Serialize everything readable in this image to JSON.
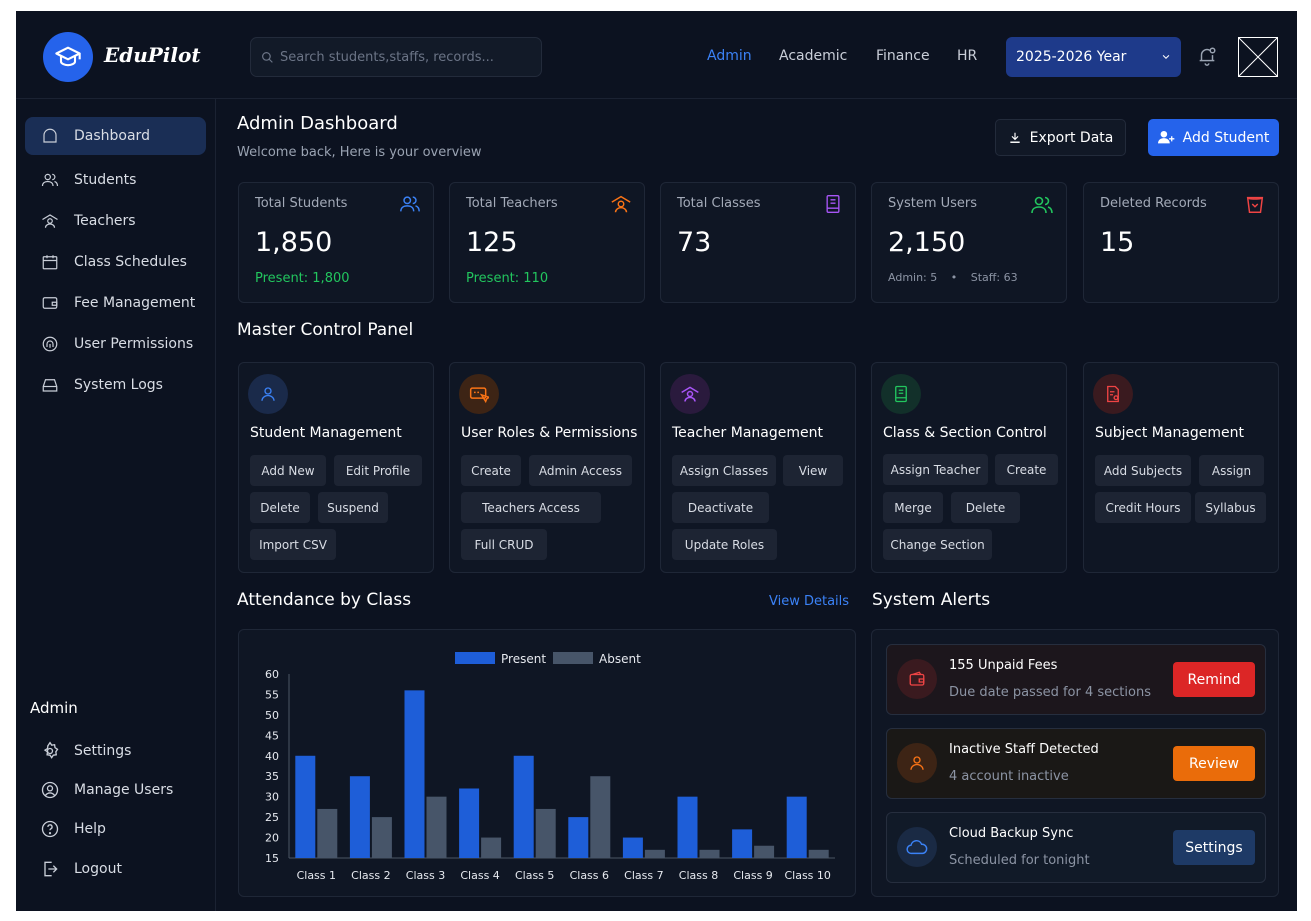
{
  "app": {
    "name": "EduPilot"
  },
  "search": {
    "placeholder": "Search students,staffs, records..."
  },
  "topnav": {
    "links": [
      "Admin",
      "Academic",
      "Finance",
      "HR"
    ],
    "active": "Admin",
    "year": "2025-2026 Year"
  },
  "sidebar": {
    "items": [
      {
        "label": "Dashboard",
        "icon": "home-icon",
        "active": true
      },
      {
        "label": "Students",
        "icon": "users-icon"
      },
      {
        "label": "Teachers",
        "icon": "teacher-icon"
      },
      {
        "label": "Class Schedules",
        "icon": "calendar-icon"
      },
      {
        "label": "Fee Management",
        "icon": "wallet-icon"
      },
      {
        "label": "User Permissions",
        "icon": "fingerprint-icon"
      },
      {
        "label": "System Logs",
        "icon": "drive-icon"
      }
    ],
    "section_title": "Admin",
    "bottom_items": [
      {
        "label": "Settings",
        "icon": "gear-icon"
      },
      {
        "label": "Manage Users",
        "icon": "user-circle-icon"
      },
      {
        "label": "Help",
        "icon": "help-icon"
      },
      {
        "label": "Logout",
        "icon": "logout-icon"
      }
    ]
  },
  "header": {
    "title": "Admin Dashboard",
    "subtitle": "Welcome back, Here is your overview",
    "export_label": "Export Data",
    "add_label": "Add Student"
  },
  "stats": [
    {
      "label": "Total Students",
      "value": "1,850",
      "sub": "Present: 1,800",
      "icon": "users-icon",
      "color": "#3b82f6"
    },
    {
      "label": "Total Teachers",
      "value": "125",
      "sub": "Present: 110",
      "icon": "teacher-icon",
      "color": "#f97316"
    },
    {
      "label": "Total Classes",
      "value": "73",
      "sub": "",
      "icon": "book-icon",
      "color": "#a855f7"
    },
    {
      "label": "System Users",
      "value": "2,150",
      "sub_admin": "Admin: 5",
      "sub_staff": "Staff: 63",
      "icon": "users-icon",
      "color": "#22c55e"
    },
    {
      "label": "Deleted Records",
      "value": "15",
      "sub": "",
      "icon": "trash-icon",
      "color": "#ef4444"
    }
  ],
  "control_panel": {
    "title": "Master Control Panel",
    "cards": [
      {
        "title": "Student Management",
        "icon": "user-icon",
        "color": "#3b82f6",
        "bg": "#1a2a4a",
        "actions": [
          "Add New",
          "Edit Profile",
          "Delete",
          "Suspend",
          "Import CSV"
        ]
      },
      {
        "title": "User Roles & Permissions",
        "icon": "card-pointer-icon",
        "color": "#f97316",
        "bg": "#3d2415",
        "actions": [
          "Create",
          "Admin Access",
          "Teachers Access",
          "Full CRUD"
        ]
      },
      {
        "title": "Teacher Management",
        "icon": "teacher-icon",
        "color": "#a855f7",
        "bg": "#2a1a3d",
        "actions": [
          "Assign Classes",
          "View",
          "Deactivate",
          "Update Roles"
        ]
      },
      {
        "title": "Class & Section Control",
        "icon": "book-icon",
        "color": "#22c55e",
        "bg": "#12302a",
        "actions": [
          "Assign Teacher",
          "Create",
          "Merge",
          "Delete",
          "Change Section"
        ]
      },
      {
        "title": "Subject Management",
        "icon": "document-icon",
        "color": "#ef4444",
        "bg": "#3a1a1f",
        "actions": [
          "Add Subjects",
          "Assign",
          "Credit Hours",
          "Syllabus"
        ]
      }
    ]
  },
  "attendance": {
    "title": "Attendance by Class",
    "view_details": "View Details"
  },
  "chart_data": {
    "type": "bar",
    "title": "Attendance by Class",
    "categories": [
      "Class 1",
      "Class 2",
      "Class 3",
      "Class 4",
      "Class 5",
      "Class 6",
      "Class 7",
      "Class 8",
      "Class 9",
      "Class 10"
    ],
    "series": [
      {
        "name": "Present",
        "values": [
          40,
          35,
          56,
          32,
          40,
          25,
          20,
          30,
          22,
          30
        ],
        "color": "#1e5ed8"
      },
      {
        "name": "Absent",
        "values": [
          27,
          25,
          30,
          20,
          27,
          35,
          17,
          17,
          18,
          17
        ],
        "color": "#475569"
      }
    ],
    "ylim": [
      15,
      60
    ],
    "yticks": [
      15,
      20,
      25,
      30,
      35,
      40,
      45,
      50,
      55,
      60
    ],
    "legend": "top-center",
    "grid": false
  },
  "alerts": {
    "title": "System Alerts",
    "items": [
      {
        "title": "155 Unpaid Fees",
        "sub": "Due date passed for 4 sections",
        "action": "Remind",
        "icon": "wallet-icon",
        "color": "#dc2626"
      },
      {
        "title": "Inactive Staff Detected",
        "sub": "4 account inactive",
        "action": "Review",
        "icon": "user-icon",
        "color": "#ea6c0a"
      },
      {
        "title": "Cloud Backup Sync",
        "sub": "Scheduled for tonight",
        "action": "Settings",
        "icon": "cloud-icon",
        "color": "#1e3a66"
      }
    ]
  }
}
